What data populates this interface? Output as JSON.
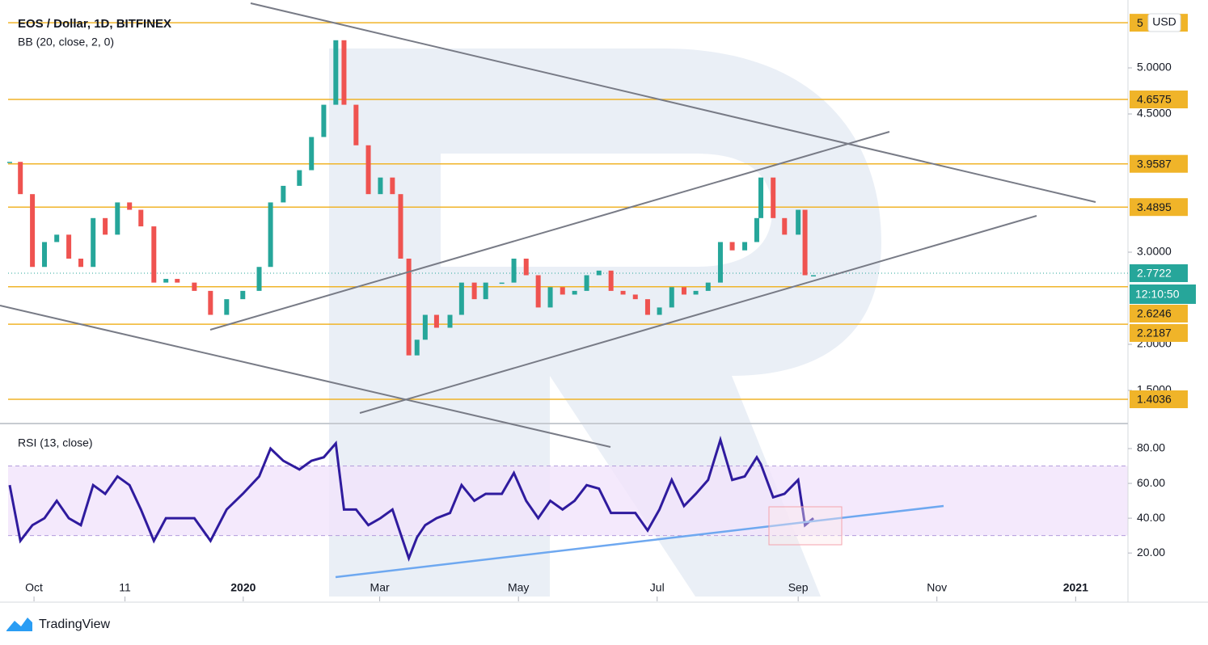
{
  "header": {
    "title": "EOS / Dollar, 1D, BITFINEX",
    "indicator": "BB (20, close, 2, 0)",
    "currency": "USD"
  },
  "chart_data": [
    {
      "type": "candlestick",
      "up_color": "#26a69a",
      "down_color": "#ef5350",
      "x": [
        -10.7,
        -6,
        -0.7,
        4.6,
        10,
        15.3,
        20.6,
        26,
        31.3,
        36.7,
        42,
        47,
        52.7,
        58,
        63,
        70.5,
        77.6,
        84.7,
        91.8,
        99,
        104,
        109.6,
        116.7,
        122,
        127.4,
        132.7,
        136.3,
        141.6,
        147,
        152.3,
        157.6,
        161.2,
        164.8,
        168.4,
        172,
        177,
        182.9,
        188,
        193.6,
        198.6,
        205.7,
        211,
        216.4,
        221.7,
        227,
        232.4,
        237.7,
        243,
        248.4,
        253.7,
        259,
        264.4,
        269.8,
        275,
        280.4,
        285.8,
        291,
        296.4,
        301.8,
        307,
        312.5,
        317.8,
        319.6,
        325,
        330,
        336,
        339,
        342.7
      ],
      "values": [
        3.98,
        3.63,
        2.84,
        3.11,
        3.19,
        2.93,
        2.84,
        3.37,
        3.19,
        3.54,
        3.46,
        3.28,
        2.67,
        2.71,
        2.67,
        2.58,
        2.32,
        2.49,
        2.58,
        2.84,
        3.54,
        3.72,
        3.89,
        4.25,
        4.6,
        5.3,
        4.6,
        4.16,
        3.63,
        3.81,
        3.63,
        2.93,
        1.88,
        2.05,
        2.32,
        2.18,
        2.32,
        2.67,
        2.49,
        2.67,
        2.67,
        2.93,
        2.75,
        2.4,
        2.62,
        2.54,
        2.58,
        2.75,
        2.8,
        2.58,
        2.54,
        2.49,
        2.32,
        2.4,
        2.62,
        2.54,
        2.58,
        2.67,
        3.11,
        3.02,
        3.11,
        3.37,
        3.81,
        3.37,
        3.19,
        3.46,
        2.75,
        2.75
      ],
      "xlim": [
        -11.4,
        481
      ],
      "ylim": [
        1.158,
        5.649
      ],
      "yticks": [
        {
          "value": 5,
          "label": "5.0000"
        },
        {
          "value": 4.5,
          "label": "4.5000"
        },
        {
          "value": 3,
          "label": "3.0000"
        },
        {
          "value": 2,
          "label": "2.0000"
        },
        {
          "value": 1.5,
          "label": "1.5000"
        }
      ],
      "levels": [
        {
          "value": 5.49,
          "label": "5"
        },
        4.6575,
        3.9587,
        3.4895,
        2.6246,
        2.2187,
        1.4036
      ],
      "level_color": "#f0b429",
      "last_price": 2.7722,
      "timer": "12:10:50"
    },
    {
      "type": "line",
      "title": "RSI (13, close)",
      "color": "#2f1b9e",
      "x": [
        -10.7,
        -6,
        -0.7,
        4.6,
        10,
        15.3,
        20.6,
        26,
        31.3,
        36.7,
        42,
        47,
        52.7,
        58,
        63,
        70.5,
        77.6,
        84.7,
        91.8,
        99,
        104,
        109.6,
        116.7,
        122,
        127.4,
        132.7,
        136.3,
        141.6,
        147,
        152.3,
        157.6,
        161.2,
        164.8,
        168.4,
        172,
        177,
        182.9,
        188,
        193.6,
        198.6,
        205.7,
        211,
        216.4,
        221.7,
        227,
        232.4,
        237.7,
        243,
        248.4,
        253.7,
        259,
        264.4,
        269.8,
        275,
        280.4,
        285.8,
        291,
        296.4,
        301.8,
        307,
        312.5,
        317.8,
        319.6,
        325,
        330,
        336,
        339,
        342.7
      ],
      "values": [
        59,
        27,
        36,
        40,
        50,
        40,
        36,
        59,
        54,
        64,
        59,
        45,
        27,
        40,
        40,
        40,
        27,
        45,
        54,
        64,
        80,
        73,
        68,
        73,
        75,
        83,
        45,
        45,
        36,
        40,
        45,
        31,
        17,
        29,
        36,
        40,
        43,
        59,
        50,
        54,
        54,
        66,
        50,
        40,
        50,
        45,
        50,
        59,
        57,
        43,
        43,
        43,
        33,
        45,
        62,
        47,
        54,
        62,
        85,
        62,
        64,
        75,
        71,
        52,
        54,
        62,
        36,
        40
      ],
      "xlim": [
        -11.4,
        481
      ],
      "ylim": [
        -5,
        93
      ],
      "yticks": [
        {
          "value": 80,
          "label": "80.00"
        },
        {
          "value": 60,
          "label": "60.00"
        },
        {
          "value": 40,
          "label": "40.00"
        },
        {
          "value": 20,
          "label": "20.00"
        }
      ],
      "bands": [
        30,
        70
      ],
      "xticks": [
        {
          "value": 0,
          "label": "Oct"
        },
        {
          "value": 40,
          "label": "11"
        },
        {
          "value": 92,
          "label": "2020"
        },
        {
          "value": 152,
          "label": "Mar"
        },
        {
          "value": 213,
          "label": "May"
        },
        {
          "value": 274,
          "label": "Jul"
        },
        {
          "value": 336,
          "label": "Sep"
        },
        {
          "value": 397,
          "label": "Nov"
        },
        {
          "value": 458,
          "label": "2021"
        }
      ]
    }
  ],
  "footer": {
    "brand": "TradingView"
  }
}
